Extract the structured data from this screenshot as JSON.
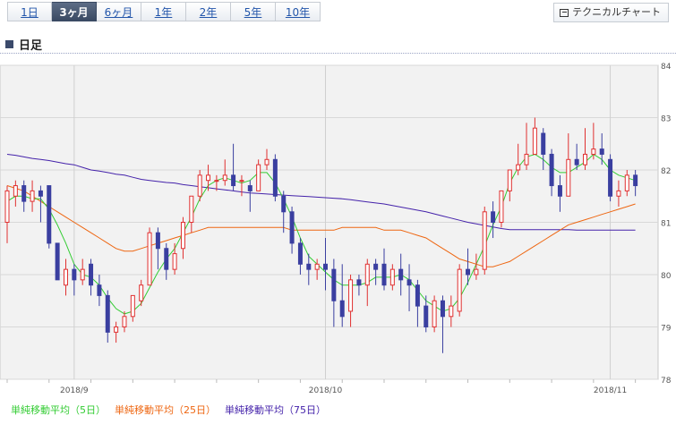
{
  "tabs": [
    {
      "label": "1日",
      "active": false
    },
    {
      "label": "3ヶ月",
      "active": true
    },
    {
      "label": "6ヶ月",
      "active": false
    },
    {
      "label": "1年",
      "active": false
    },
    {
      "label": "2年",
      "active": false
    },
    {
      "label": "5年",
      "active": false
    },
    {
      "label": "10年",
      "active": false
    }
  ],
  "technical_button": "テクニカルチャート",
  "section_title": "日足",
  "colors": {
    "up_candle": "#e03030",
    "down_candle": "#3a3fa0",
    "ma5": "#33cc33",
    "ma25": "#ee6611",
    "ma75": "#4422aa",
    "plot_bg": "#f2f2f2"
  },
  "chart_data": {
    "type": "candlestick",
    "ylim": [
      78,
      84
    ],
    "yticks": [
      78,
      79,
      80,
      81,
      82,
      83,
      84
    ],
    "x_labels": [
      {
        "label": "2018/9",
        "index": 8
      },
      {
        "label": "2018/10",
        "index": 38
      },
      {
        "label": "2018/11",
        "index": 72
      }
    ],
    "candles": [
      [
        81.0,
        81.6,
        81.7,
        80.6
      ],
      [
        81.5,
        81.7,
        81.8,
        81.3
      ],
      [
        81.7,
        81.4,
        81.8,
        81.2
      ],
      [
        81.4,
        81.6,
        81.8,
        81.2
      ],
      [
        81.6,
        81.5,
        81.7,
        81.0
      ],
      [
        81.7,
        80.6,
        81.7,
        80.5
      ],
      [
        80.6,
        79.9,
        80.6,
        79.9
      ],
      [
        79.8,
        80.1,
        80.3,
        79.6
      ],
      [
        80.1,
        79.9,
        80.2,
        79.6
      ],
      [
        79.9,
        80.1,
        80.3,
        79.8
      ],
      [
        80.2,
        79.8,
        80.3,
        79.6
      ],
      [
        79.8,
        79.6,
        80.0,
        79.4
      ],
      [
        79.6,
        78.9,
        79.7,
        78.7
      ],
      [
        78.9,
        79.0,
        79.1,
        78.7
      ],
      [
        79.0,
        79.2,
        79.3,
        78.9
      ],
      [
        79.2,
        79.6,
        79.6,
        79.1
      ],
      [
        79.5,
        79.8,
        79.9,
        79.4
      ],
      [
        79.8,
        80.8,
        80.9,
        79.8
      ],
      [
        80.8,
        80.5,
        80.9,
        80.1
      ],
      [
        80.5,
        80.1,
        80.6,
        79.9
      ],
      [
        80.1,
        80.4,
        80.6,
        80.0
      ],
      [
        80.5,
        81.0,
        81.1,
        80.3
      ],
      [
        81.0,
        81.5,
        81.5,
        80.8
      ],
      [
        81.5,
        81.9,
        82.0,
        81.4
      ],
      [
        81.8,
        81.9,
        82.1,
        81.6
      ],
      [
        81.8,
        81.8,
        81.9,
        81.6
      ],
      [
        81.8,
        81.9,
        82.2,
        81.7
      ],
      [
        81.9,
        81.7,
        82.5,
        81.6
      ],
      [
        81.8,
        81.8,
        81.9,
        81.5
      ],
      [
        81.7,
        81.6,
        81.8,
        81.2
      ],
      [
        81.6,
        82.1,
        82.2,
        81.6
      ],
      [
        82.1,
        82.2,
        82.4,
        82.0
      ],
      [
        82.2,
        81.5,
        82.3,
        81.4
      ],
      [
        81.5,
        81.2,
        81.6,
        80.8
      ],
      [
        81.2,
        80.6,
        81.3,
        80.4
      ],
      [
        80.6,
        80.2,
        80.7,
        80.0
      ],
      [
        80.2,
        80.1,
        80.4,
        79.8
      ],
      [
        80.1,
        80.2,
        80.3,
        79.9
      ],
      [
        80.2,
        80.1,
        80.7,
        79.7
      ],
      [
        80.1,
        79.5,
        80.3,
        79.0
      ],
      [
        79.5,
        79.2,
        80.2,
        79.0
      ],
      [
        79.3,
        79.9,
        80.0,
        79.0
      ],
      [
        79.9,
        79.8,
        80.0,
        79.6
      ],
      [
        79.8,
        80.2,
        80.3,
        79.4
      ],
      [
        80.2,
        80.1,
        80.3,
        79.8
      ],
      [
        80.2,
        79.8,
        80.5,
        79.7
      ],
      [
        79.8,
        80.1,
        80.2,
        79.7
      ],
      [
        80.1,
        79.9,
        80.4,
        79.6
      ],
      [
        79.9,
        79.8,
        80.2,
        79.3
      ],
      [
        79.8,
        79.4,
        79.9,
        79.0
      ],
      [
        79.4,
        79.0,
        79.6,
        78.9
      ],
      [
        79.0,
        79.5,
        79.6,
        78.9
      ],
      [
        79.5,
        79.2,
        79.6,
        78.5
      ],
      [
        79.2,
        79.4,
        79.6,
        79.0
      ],
      [
        79.3,
        80.1,
        80.2,
        79.2
      ],
      [
        80.1,
        80.0,
        80.5,
        79.8
      ],
      [
        80.0,
        80.1,
        80.4,
        79.9
      ],
      [
        80.1,
        81.2,
        81.3,
        80.0
      ],
      [
        81.2,
        81.0,
        81.4,
        80.7
      ],
      [
        81.0,
        81.6,
        81.6,
        80.9
      ],
      [
        81.6,
        82.0,
        82.0,
        81.4
      ],
      [
        82.0,
        82.1,
        82.5,
        81.9
      ],
      [
        82.1,
        82.3,
        82.9,
        82.0
      ],
      [
        82.3,
        82.8,
        83.0,
        82.3
      ],
      [
        82.7,
        82.3,
        82.8,
        82.0
      ],
      [
        82.3,
        81.7,
        82.4,
        81.5
      ],
      [
        81.7,
        81.5,
        81.9,
        81.2
      ],
      [
        81.5,
        82.2,
        82.7,
        81.5
      ],
      [
        82.2,
        82.1,
        82.5,
        82.0
      ],
      [
        82.1,
        82.3,
        82.8,
        82.0
      ],
      [
        82.3,
        82.4,
        82.9,
        82.2
      ],
      [
        82.4,
        82.3,
        82.7,
        82.1
      ],
      [
        82.2,
        81.5,
        82.3,
        81.4
      ],
      [
        81.5,
        81.6,
        81.8,
        81.3
      ],
      [
        81.6,
        81.9,
        82.0,
        81.5
      ],
      [
        81.9,
        81.7,
        82.0,
        81.5
      ]
    ],
    "ma5": [
      81.4,
      81.5,
      81.5,
      81.45,
      81.45,
      81.25,
      80.95,
      80.6,
      80.2,
      80.0,
      79.95,
      79.8,
      79.55,
      79.35,
      79.25,
      79.3,
      79.45,
      79.75,
      80.05,
      80.3,
      80.5,
      80.8,
      81.1,
      81.45,
      81.7,
      81.8,
      81.85,
      81.8,
      81.75,
      81.8,
      81.95,
      81.95,
      81.75,
      81.45,
      81.1,
      80.7,
      80.35,
      80.2,
      80.05,
      79.9,
      79.8,
      79.8,
      79.8,
      79.85,
      79.95,
      79.95,
      79.95,
      80.0,
      79.9,
      79.7,
      79.5,
      79.4,
      79.3,
      79.35,
      79.55,
      79.85,
      80.2,
      80.55,
      80.95,
      81.3,
      81.75,
      82.05,
      82.25,
      82.3,
      82.2,
      82.05,
      81.95,
      81.95,
      82.05,
      82.15,
      82.3,
      82.2,
      82.0,
      81.9,
      81.85,
      81.8
    ],
    "ma25": [
      81.7,
      81.65,
      81.6,
      81.5,
      81.4,
      81.3,
      81.2,
      81.1,
      81.0,
      80.9,
      80.8,
      80.7,
      80.6,
      80.5,
      80.45,
      80.45,
      80.5,
      80.55,
      80.6,
      80.65,
      80.7,
      80.75,
      80.8,
      80.85,
      80.9,
      80.9,
      80.9,
      80.9,
      80.9,
      80.9,
      80.9,
      80.9,
      80.9,
      80.9,
      80.85,
      80.85,
      80.85,
      80.85,
      80.85,
      80.85,
      80.9,
      80.9,
      80.9,
      80.9,
      80.9,
      80.85,
      80.85,
      80.85,
      80.8,
      80.75,
      80.7,
      80.6,
      80.5,
      80.4,
      80.3,
      80.25,
      80.2,
      80.15,
      80.15,
      80.2,
      80.25,
      80.35,
      80.45,
      80.55,
      80.65,
      80.75,
      80.85,
      80.95,
      81.0,
      81.05,
      81.1,
      81.15,
      81.2,
      81.25,
      81.3,
      81.35
    ],
    "ma75": [
      82.3,
      82.28,
      82.25,
      82.22,
      82.2,
      82.18,
      82.15,
      82.12,
      82.1,
      82.05,
      82.0,
      81.98,
      81.95,
      81.92,
      81.9,
      81.86,
      81.82,
      81.8,
      81.78,
      81.76,
      81.75,
      81.72,
      81.7,
      81.68,
      81.66,
      81.64,
      81.62,
      81.6,
      81.58,
      81.56,
      81.55,
      81.54,
      81.53,
      81.52,
      81.51,
      81.5,
      81.49,
      81.48,
      81.47,
      81.46,
      81.45,
      81.43,
      81.41,
      81.39,
      81.37,
      81.35,
      81.32,
      81.29,
      81.26,
      81.23,
      81.2,
      81.16,
      81.12,
      81.08,
      81.04,
      81.0,
      80.97,
      80.94,
      80.91,
      80.88,
      80.86,
      80.86,
      80.86,
      80.86,
      80.86,
      80.86,
      80.86,
      80.86,
      80.85,
      80.85,
      80.85,
      80.85,
      80.85,
      80.85,
      80.85,
      80.85
    ],
    "legend": [
      {
        "name": "単純移動平均（5日）",
        "color": "#33cc33"
      },
      {
        "name": "単純移動平均（25日）",
        "color": "#ee6611"
      },
      {
        "name": "単純移動平均（75日）",
        "color": "#4422aa"
      }
    ]
  }
}
